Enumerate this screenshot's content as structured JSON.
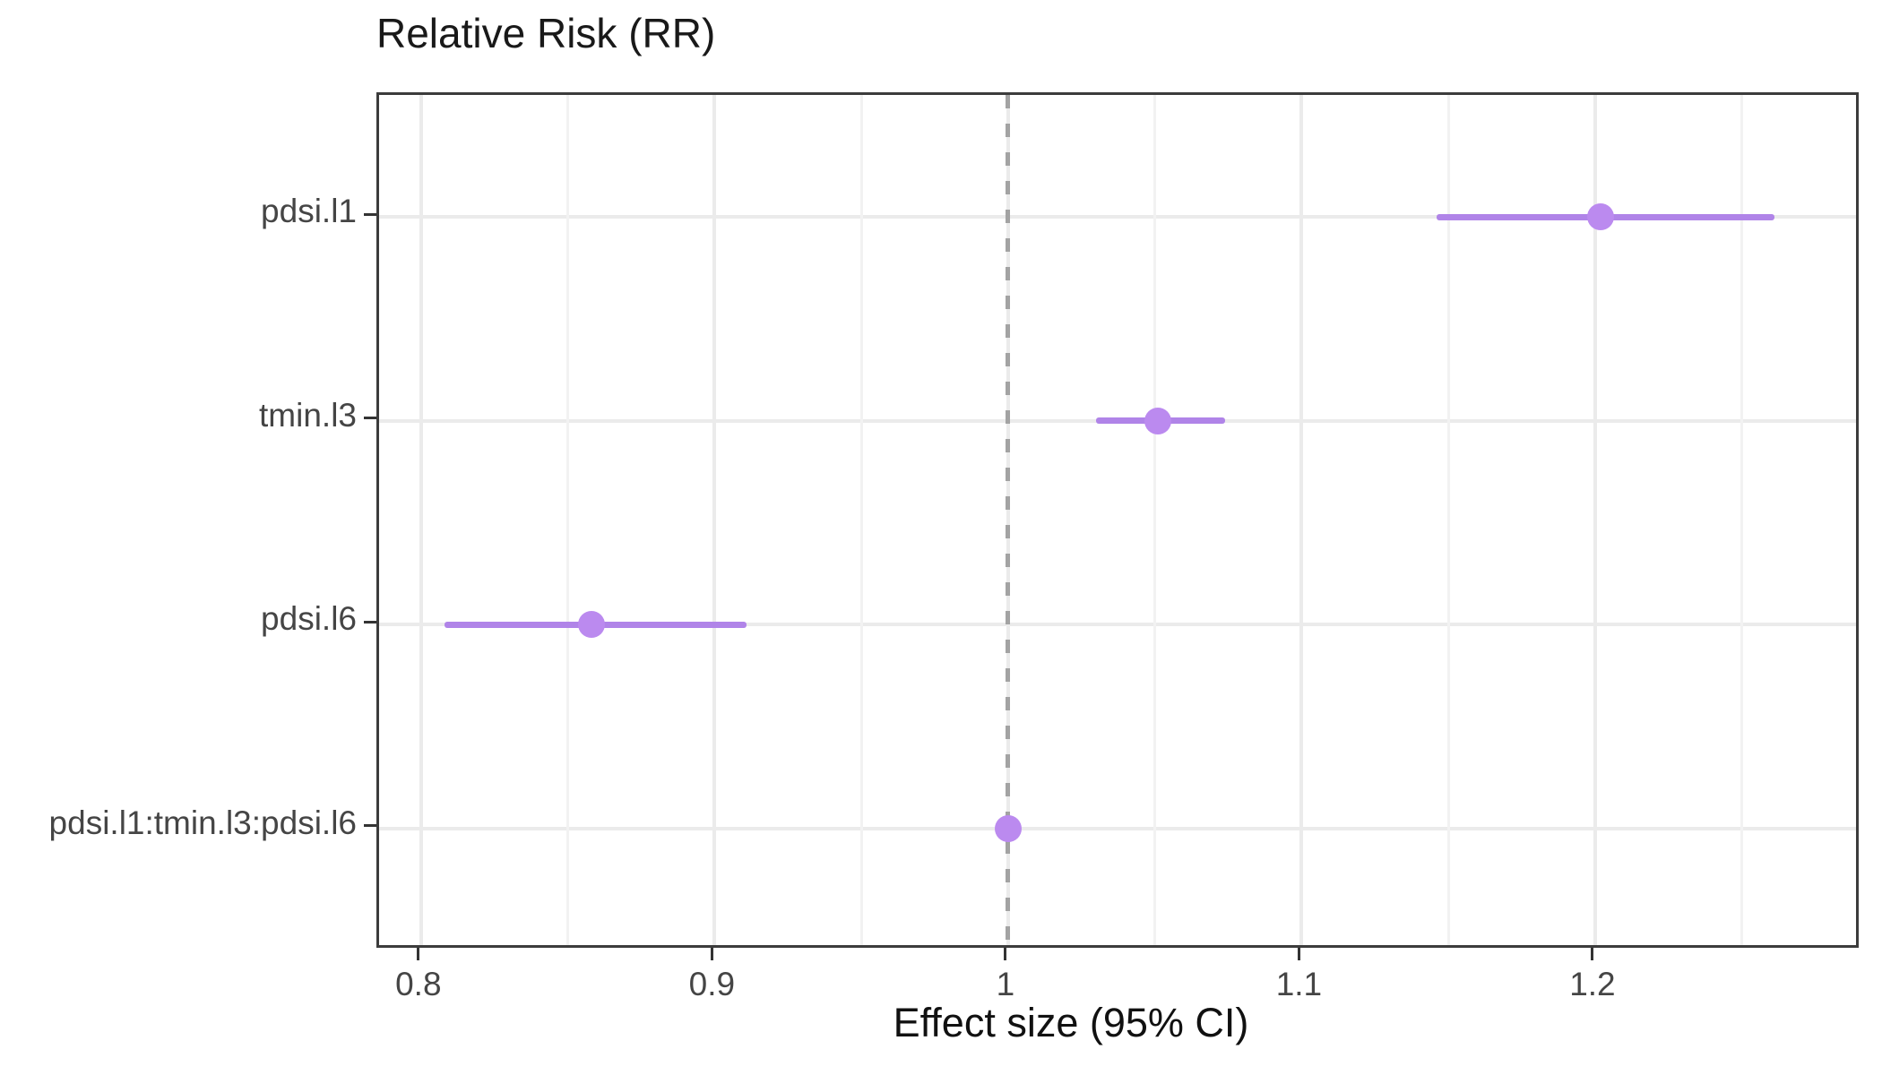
{
  "chart_data": {
    "type": "scatter",
    "subtype": "forest-plot-pointrange",
    "title": "Relative Risk (RR)",
    "xlabel": "Effect size (95% CI)",
    "ylabel": "",
    "legend": "none",
    "grid": true,
    "categories": [
      "pdsi.l1",
      "tmin.l3",
      "pdsi.l6",
      "pdsi.l1:tmin.l3:pdsi.l6"
    ],
    "points": [
      {
        "label": "pdsi.l1",
        "estimate": 1.202,
        "ci_low": 1.146,
        "ci_high": 1.261
      },
      {
        "label": "tmin.l3",
        "estimate": 1.051,
        "ci_low": 1.03,
        "ci_high": 1.074
      },
      {
        "label": "pdsi.l6",
        "estimate": 0.858,
        "ci_low": 0.808,
        "ci_high": 0.911
      },
      {
        "label": "pdsi.l1:tmin.l3:pdsi.l6",
        "estimate": 1.0,
        "ci_low": 0.997,
        "ci_high": 1.003
      }
    ],
    "x_ticks": [
      0.8,
      0.9,
      1,
      1.1,
      1.2
    ],
    "x_tick_labels": [
      "0.8",
      "0.9",
      "1",
      "1.1",
      "1.2"
    ],
    "x_minor_ticks": [
      0.85,
      0.95,
      1.05,
      1.15,
      1.25
    ],
    "x_range": [
      0.7857,
      1.2907
    ],
    "reference_line": 1,
    "colors": {
      "point": "#BB8AEF",
      "ci_line": "#B084E8",
      "reference_line": "#A3A3A3",
      "grid_major": "#EBEBEB",
      "grid_minor": "#F2F2F2",
      "panel_border": "#3C3C3C",
      "tick": "#333333",
      "tick_label": "#454545",
      "title": "#191919",
      "axis_title": "#111111",
      "background": "#FFFFFF"
    }
  }
}
